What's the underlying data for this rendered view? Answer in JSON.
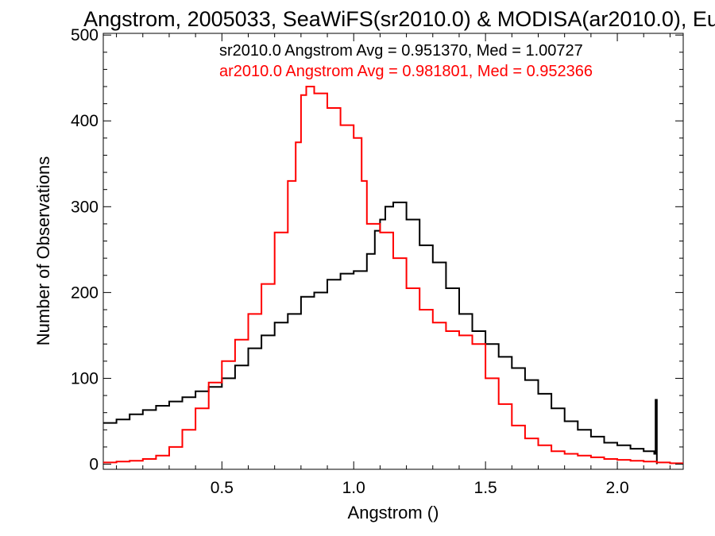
{
  "chart_data": {
    "type": "line",
    "title": "Angstrom, 2005033, SeaWiFS(sr2010.0) & MODISA(ar2010.0), Eu",
    "xlabel": "Angstrom ()",
    "ylabel": "Number of Observations",
    "xlim": [
      0.05,
      2.25
    ],
    "ylim": [
      -6,
      502
    ],
    "x_ticks": [
      0.5,
      1.0,
      1.5,
      2.0
    ],
    "x_tick_labels": [
      "0.5",
      "1.0",
      "1.5",
      "2.0"
    ],
    "y_ticks": [
      0,
      100,
      200,
      300,
      400,
      500
    ],
    "y_tick_labels": [
      "0",
      "100",
      "200",
      "300",
      "400",
      "500"
    ],
    "grid": false,
    "legend_placement": "top-right",
    "annotations": [
      {
        "text": "sr2010.0 Angstrom Avg = 0.951370, Med = 1.00727",
        "color": "#000000"
      },
      {
        "text": "ar2010.0 Angstrom Avg = 0.981801, Med = 0.952366",
        "color": "#ff0000"
      }
    ],
    "series": [
      {
        "color": "#000000",
        "x": [
          0.05,
          0.1,
          0.15,
          0.2,
          0.25,
          0.3,
          0.35,
          0.4,
          0.45,
          0.5,
          0.55,
          0.6,
          0.65,
          0.7,
          0.75,
          0.8,
          0.85,
          0.9,
          0.95,
          1.0,
          1.05,
          1.08,
          1.1,
          1.12,
          1.15,
          1.2,
          1.25,
          1.3,
          1.35,
          1.4,
          1.45,
          1.5,
          1.55,
          1.6,
          1.65,
          1.7,
          1.75,
          1.8,
          1.85,
          1.9,
          1.95,
          2.0,
          2.05,
          2.1,
          2.14,
          2.145,
          2.15
        ],
        "values": [
          48,
          52,
          58,
          63,
          68,
          73,
          78,
          85,
          90,
          100,
          115,
          135,
          150,
          165,
          175,
          195,
          200,
          215,
          222,
          225,
          245,
          272,
          285,
          300,
          305,
          285,
          255,
          235,
          205,
          175,
          155,
          140,
          125,
          112,
          98,
          82,
          65,
          50,
          40,
          32,
          25,
          22,
          18,
          15,
          12,
          75,
          0
        ]
      },
      {
        "color": "#ff0000",
        "x": [
          0.05,
          0.1,
          0.15,
          0.2,
          0.25,
          0.3,
          0.35,
          0.4,
          0.45,
          0.5,
          0.55,
          0.6,
          0.65,
          0.7,
          0.75,
          0.78,
          0.8,
          0.82,
          0.85,
          0.9,
          0.95,
          1.0,
          1.03,
          1.05,
          1.1,
          1.15,
          1.2,
          1.25,
          1.3,
          1.35,
          1.4,
          1.45,
          1.5,
          1.55,
          1.6,
          1.65,
          1.7,
          1.75,
          1.8,
          1.85,
          1.9,
          1.95,
          2.0,
          2.05,
          2.1,
          2.15,
          2.2,
          2.25
        ],
        "values": [
          2,
          3,
          4,
          6,
          10,
          20,
          40,
          65,
          95,
          120,
          145,
          175,
          210,
          270,
          330,
          375,
          430,
          440,
          432,
          415,
          395,
          380,
          330,
          280,
          270,
          240,
          205,
          180,
          165,
          155,
          150,
          140,
          100,
          70,
          45,
          30,
          22,
          15,
          12,
          10,
          8,
          6,
          5,
          4,
          3,
          2,
          1,
          1
        ]
      }
    ]
  }
}
